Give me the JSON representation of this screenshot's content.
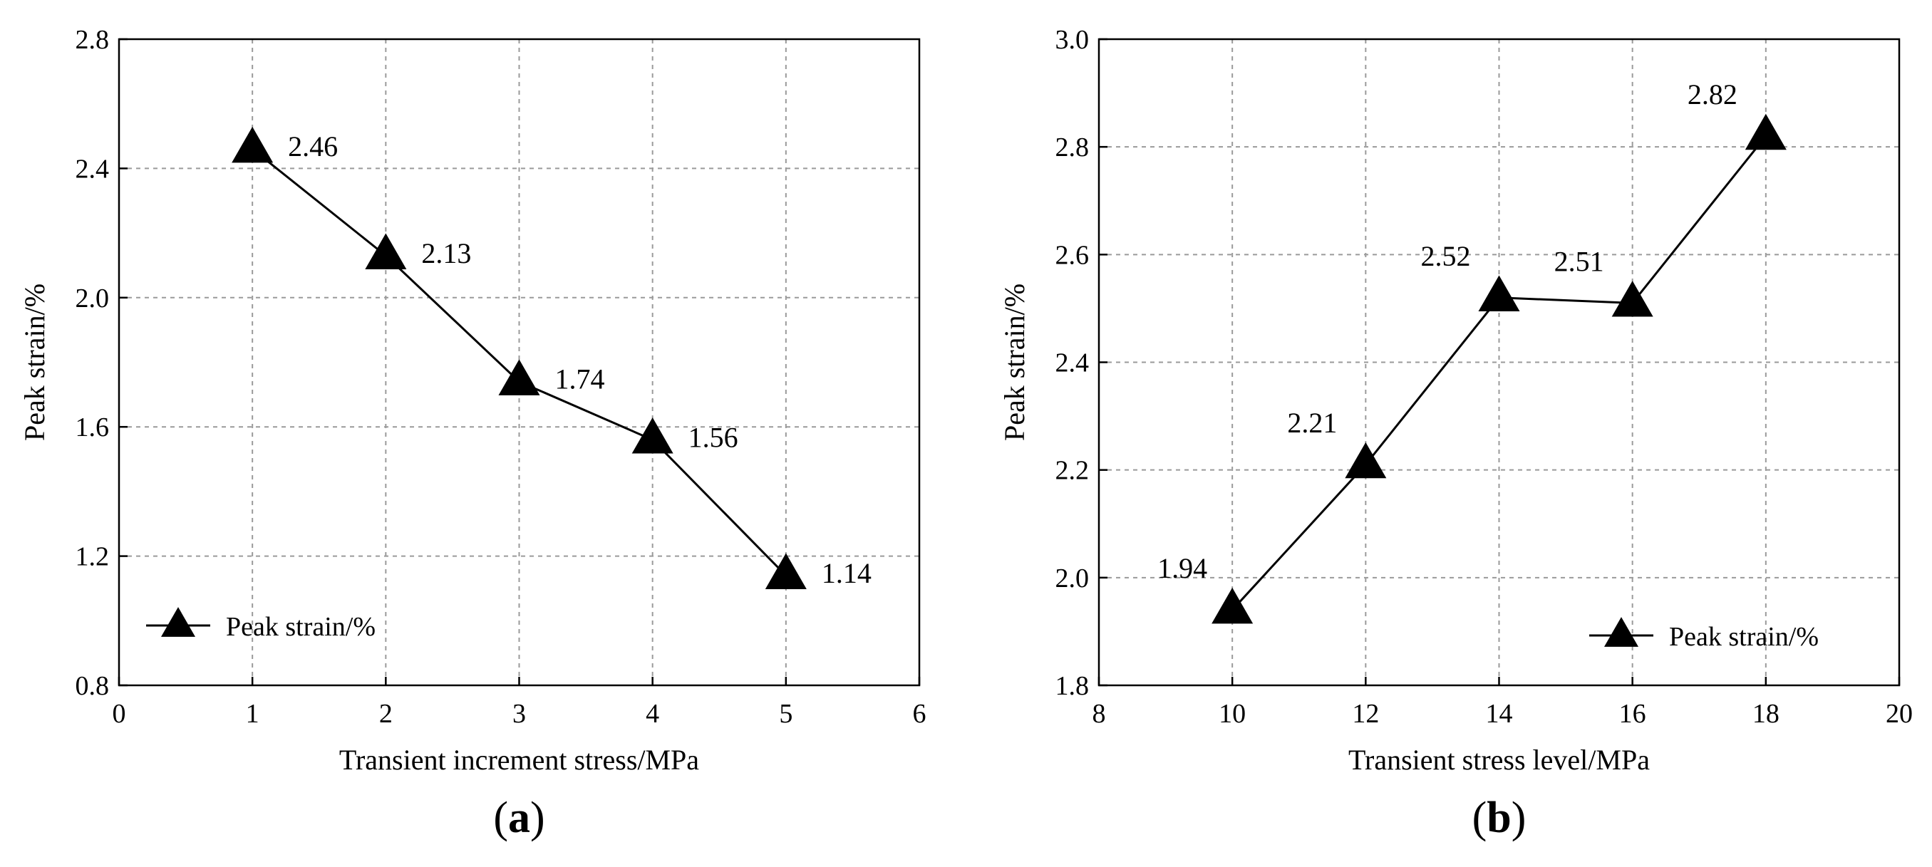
{
  "chart_data": [
    {
      "type": "line",
      "panel_label": "a",
      "xlabel": "Transient increment stress/MPa",
      "ylabel": "Peak strain/%",
      "xlim": [
        0,
        6
      ],
      "ylim": [
        0.8,
        2.8
      ],
      "xticks": [
        "0",
        "1",
        "2",
        "3",
        "4",
        "5",
        "6"
      ],
      "yticks": [
        "0.8",
        "1.2",
        "1.6",
        "2.0",
        "2.4",
        "2.8"
      ],
      "grid": true,
      "legend_position": "bottom-left",
      "series": [
        {
          "name": "Peak strain/%",
          "marker": "triangle",
          "x": [
            1,
            2,
            3,
            4,
            5
          ],
          "y": [
            2.46,
            2.13,
            1.74,
            1.56,
            1.14
          ],
          "labels": [
            "2.46",
            "2.13",
            "1.74",
            "1.56",
            "1.14"
          ],
          "label_placement": "right"
        }
      ]
    },
    {
      "type": "line",
      "panel_label": "b",
      "xlabel": "Transient stress level/MPa",
      "ylabel": "Peak strain/%",
      "xlim": [
        8,
        20
      ],
      "ylim": [
        1.8,
        3.0
      ],
      "xticks": [
        "8",
        "10",
        "12",
        "14",
        "16",
        "18",
        "20"
      ],
      "yticks": [
        "1.8",
        "2.0",
        "2.2",
        "2.4",
        "2.6",
        "2.8",
        "3.0"
      ],
      "grid": true,
      "legend_position": "bottom-right",
      "series": [
        {
          "name": "Peak strain/%",
          "marker": "triangle",
          "x": [
            10,
            12,
            14,
            16,
            18
          ],
          "y": [
            1.94,
            2.21,
            2.52,
            2.51,
            2.82
          ],
          "labels": [
            "1.94",
            "2.21",
            "2.52",
            "2.51",
            "2.82"
          ],
          "label_placement": "above-left"
        }
      ]
    }
  ]
}
